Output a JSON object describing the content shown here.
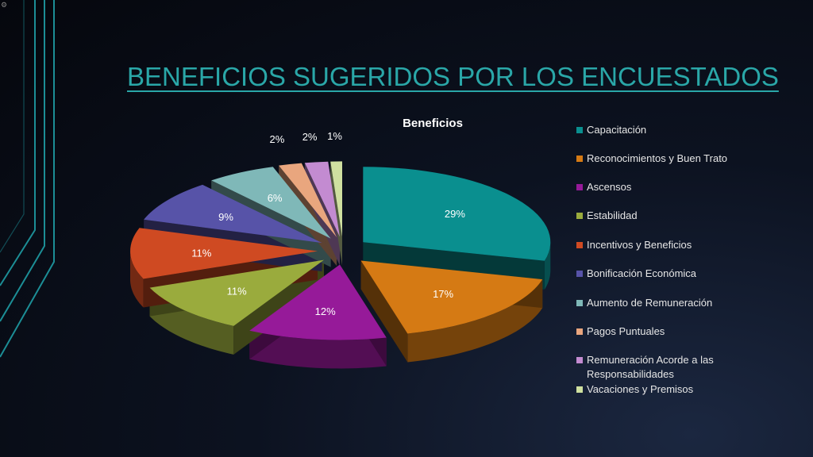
{
  "slide": {
    "title": "BENEFICIOS SUGERIDOS POR LOS ENCUESTADOS",
    "accent_color": "#2aa7a8",
    "deco_icon": "gear-icon"
  },
  "chart_data": {
    "type": "pie",
    "style": "3d-exploded",
    "title": "Beneficios",
    "legend_position": "right",
    "unit": "%",
    "categories": [
      "Capacitación",
      "Reconocimientos y Buen Trato",
      "Ascensos",
      "Estabilidad",
      "Incentivos y Beneficios",
      "Bonificación Económica",
      "Aumento de Remuneración",
      "Pagos Puntuales",
      "Remuneración Acorde a las Responsabilidades",
      "Vacaciones y Premisos"
    ],
    "values": [
      29,
      17,
      12,
      11,
      11,
      9,
      6,
      2,
      2,
      1
    ],
    "labels": [
      "29%",
      "17%",
      "12%",
      "11%",
      "11%",
      "9%",
      "6%",
      "2%",
      "2%",
      "1%"
    ],
    "colors": [
      "#0a8f8f",
      "#d57a14",
      "#961a99",
      "#9aab3d",
      "#cf4a22",
      "#5753a8",
      "#7fb8b8",
      "#e9a67e",
      "#c38bd1",
      "#cfe0a0"
    ]
  }
}
